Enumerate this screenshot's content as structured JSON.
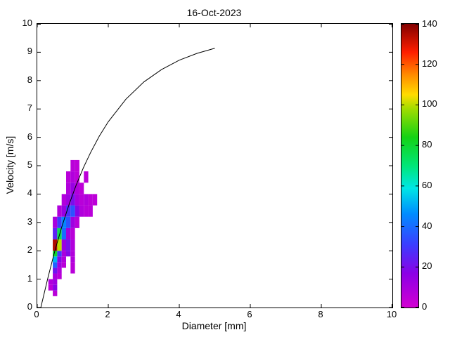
{
  "title": "16-Oct-2023",
  "axes": {
    "xlabel": "Diameter [mm]",
    "ylabel": "Velocity [m/s]"
  },
  "chart_data": {
    "type": "heatmap",
    "title": "16-Oct-2023",
    "xlabel": "Diameter [mm]",
    "ylabel": "Velocity [m/s]",
    "xlim": [
      0,
      10
    ],
    "ylim": [
      0,
      10
    ],
    "x_ticks": [
      0,
      2,
      4,
      6,
      8,
      10
    ],
    "y_ticks": [
      0,
      1,
      2,
      3,
      4,
      5,
      6,
      7,
      8,
      9,
      10
    ],
    "grid": false,
    "colorbar": {
      "min": 0,
      "max": 140,
      "ticks": [
        0,
        20,
        40,
        60,
        80,
        100,
        120,
        140
      ],
      "position": "right"
    },
    "colormap_stops": [
      [
        0.0,
        210,
        0,
        210
      ],
      [
        0.12,
        140,
        0,
        230
      ],
      [
        0.22,
        60,
        60,
        255
      ],
      [
        0.33,
        0,
        140,
        255
      ],
      [
        0.42,
        0,
        230,
        230
      ],
      [
        0.5,
        0,
        230,
        120
      ],
      [
        0.6,
        20,
        210,
        20
      ],
      [
        0.7,
        160,
        220,
        0
      ],
      [
        0.75,
        255,
        220,
        0
      ],
      [
        0.82,
        255,
        140,
        0
      ],
      [
        0.9,
        255,
        30,
        0
      ],
      [
        1.0,
        130,
        0,
        0
      ]
    ],
    "cells_format": [
      "diameter_left_mm",
      "velocity_bottom_ms",
      "width_mm",
      "height_ms",
      "count"
    ],
    "cells": [
      [
        0.437,
        0.4,
        0.125,
        0.2,
        6
      ],
      [
        0.312,
        0.6,
        0.125,
        0.2,
        5
      ],
      [
        0.437,
        0.6,
        0.125,
        0.2,
        17
      ],
      [
        0.312,
        0.8,
        0.125,
        0.2,
        8
      ],
      [
        0.437,
        0.8,
        0.125,
        0.2,
        12
      ],
      [
        0.437,
        1.0,
        0.125,
        0.2,
        10
      ],
      [
        0.562,
        1.0,
        0.125,
        0.2,
        6
      ],
      [
        0.437,
        1.2,
        0.125,
        0.2,
        22
      ],
      [
        0.562,
        1.2,
        0.125,
        0.2,
        8
      ],
      [
        0.937,
        1.2,
        0.125,
        0.4,
        6
      ],
      [
        0.437,
        1.4,
        0.125,
        0.2,
        38
      ],
      [
        0.562,
        1.4,
        0.125,
        0.2,
        12
      ],
      [
        0.687,
        1.4,
        0.125,
        0.2,
        6
      ],
      [
        0.437,
        1.6,
        0.125,
        0.2,
        52
      ],
      [
        0.562,
        1.6,
        0.125,
        0.2,
        18
      ],
      [
        0.687,
        1.6,
        0.125,
        0.2,
        8
      ],
      [
        0.937,
        1.6,
        0.125,
        0.2,
        8
      ],
      [
        0.437,
        1.8,
        0.125,
        0.2,
        80
      ],
      [
        0.562,
        1.8,
        0.125,
        0.2,
        30
      ],
      [
        0.687,
        1.8,
        0.125,
        0.2,
        10
      ],
      [
        0.812,
        1.8,
        0.125,
        0.2,
        18
      ],
      [
        0.937,
        1.8,
        0.125,
        0.2,
        8
      ],
      [
        0.437,
        2.0,
        0.125,
        0.4,
        135
      ],
      [
        0.562,
        2.0,
        0.125,
        0.4,
        100
      ],
      [
        0.687,
        2.0,
        0.125,
        0.4,
        14
      ],
      [
        0.812,
        2.0,
        0.125,
        0.4,
        20
      ],
      [
        0.937,
        2.0,
        0.125,
        0.4,
        8
      ],
      [
        0.437,
        2.4,
        0.125,
        0.4,
        25
      ],
      [
        0.562,
        2.4,
        0.125,
        0.4,
        75
      ],
      [
        0.687,
        2.4,
        0.125,
        0.4,
        40
      ],
      [
        0.812,
        2.4,
        0.125,
        0.4,
        12
      ],
      [
        0.937,
        2.4,
        0.125,
        0.4,
        6
      ],
      [
        0.437,
        2.8,
        0.125,
        0.4,
        10
      ],
      [
        0.562,
        2.8,
        0.125,
        0.4,
        30
      ],
      [
        0.687,
        2.8,
        0.125,
        0.4,
        45
      ],
      [
        0.812,
        2.8,
        0.125,
        0.4,
        35
      ],
      [
        0.937,
        2.8,
        0.125,
        0.4,
        12
      ],
      [
        1.062,
        2.8,
        0.125,
        0.4,
        6
      ],
      [
        0.562,
        3.2,
        0.125,
        0.4,
        8
      ],
      [
        0.687,
        3.2,
        0.125,
        0.4,
        14
      ],
      [
        0.812,
        3.2,
        0.125,
        0.4,
        28
      ],
      [
        0.937,
        3.2,
        0.125,
        0.4,
        35
      ],
      [
        1.062,
        3.2,
        0.125,
        0.4,
        18
      ],
      [
        1.187,
        3.2,
        0.125,
        0.4,
        8
      ],
      [
        1.312,
        3.2,
        0.125,
        0.4,
        6
      ],
      [
        1.437,
        3.2,
        0.125,
        0.4,
        6
      ],
      [
        0.687,
        3.6,
        0.125,
        0.4,
        8
      ],
      [
        0.812,
        3.6,
        0.125,
        0.4,
        12
      ],
      [
        0.937,
        3.6,
        0.125,
        0.4,
        20
      ],
      [
        1.062,
        3.6,
        0.125,
        0.4,
        10
      ],
      [
        1.187,
        3.6,
        0.125,
        0.4,
        6
      ],
      [
        1.312,
        3.6,
        0.125,
        0.4,
        8
      ],
      [
        1.437,
        3.6,
        0.125,
        0.4,
        5
      ],
      [
        1.562,
        3.6,
        0.125,
        0.4,
        5
      ],
      [
        0.812,
        4.0,
        0.125,
        0.4,
        8
      ],
      [
        0.937,
        4.0,
        0.125,
        0.4,
        14
      ],
      [
        1.062,
        4.0,
        0.125,
        0.4,
        8
      ],
      [
        1.187,
        4.0,
        0.125,
        0.4,
        5
      ],
      [
        0.812,
        4.4,
        0.125,
        0.4,
        6
      ],
      [
        0.937,
        4.4,
        0.125,
        0.4,
        8
      ],
      [
        1.062,
        4.4,
        0.125,
        0.4,
        5
      ],
      [
        1.312,
        4.4,
        0.125,
        0.4,
        5
      ],
      [
        0.937,
        4.8,
        0.125,
        0.4,
        6
      ],
      [
        1.062,
        4.8,
        0.125,
        0.4,
        5
      ]
    ],
    "curve": {
      "name": "terminal-velocity-curve",
      "color": "#000000",
      "points": [
        [
          0.1,
          0.0
        ],
        [
          0.3,
          1.05
        ],
        [
          0.5,
          2.02
        ],
        [
          0.7,
          2.88
        ],
        [
          0.9,
          3.65
        ],
        [
          1.1,
          4.33
        ],
        [
          1.3,
          4.93
        ],
        [
          1.5,
          5.46
        ],
        [
          1.75,
          6.05
        ],
        [
          2.0,
          6.55
        ],
        [
          2.5,
          7.35
        ],
        [
          3.0,
          7.95
        ],
        [
          3.5,
          8.39
        ],
        [
          4.0,
          8.72
        ],
        [
          4.5,
          8.96
        ],
        [
          5.0,
          9.14
        ]
      ]
    }
  }
}
